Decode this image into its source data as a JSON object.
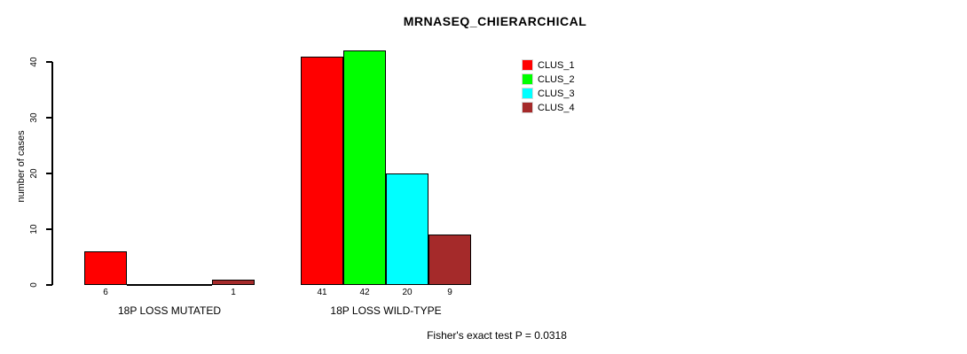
{
  "chart_data": {
    "type": "bar",
    "title": "MRNASEQ_CHIERARCHICAL",
    "ylabel": "number of cases",
    "xlabel": "",
    "ylim": [
      0,
      40
    ],
    "yticks": [
      0,
      10,
      20,
      30,
      40
    ],
    "grid": false,
    "legend_position": "top-right",
    "categories": [
      "18P LOSS MUTATED",
      "18P LOSS WILD-TYPE"
    ],
    "series": [
      {
        "name": "CLUS_1",
        "color": "#FF0000",
        "values": [
          6,
          41
        ]
      },
      {
        "name": "CLUS_2",
        "color": "#00FF00",
        "values": [
          0,
          42
        ]
      },
      {
        "name": "CLUS_3",
        "color": "#00FFFF",
        "values": [
          0,
          20
        ]
      },
      {
        "name": "CLUS_4",
        "color": "#A52A2A",
        "values": [
          1,
          9
        ]
      }
    ],
    "bar_value_labels_shown_only_if_nonzero": true,
    "annotation": "Fisher's exact test P = 0.0318"
  },
  "colors": {
    "background": "#ffffff",
    "axis": "#000000",
    "bar_border": "#000000"
  }
}
